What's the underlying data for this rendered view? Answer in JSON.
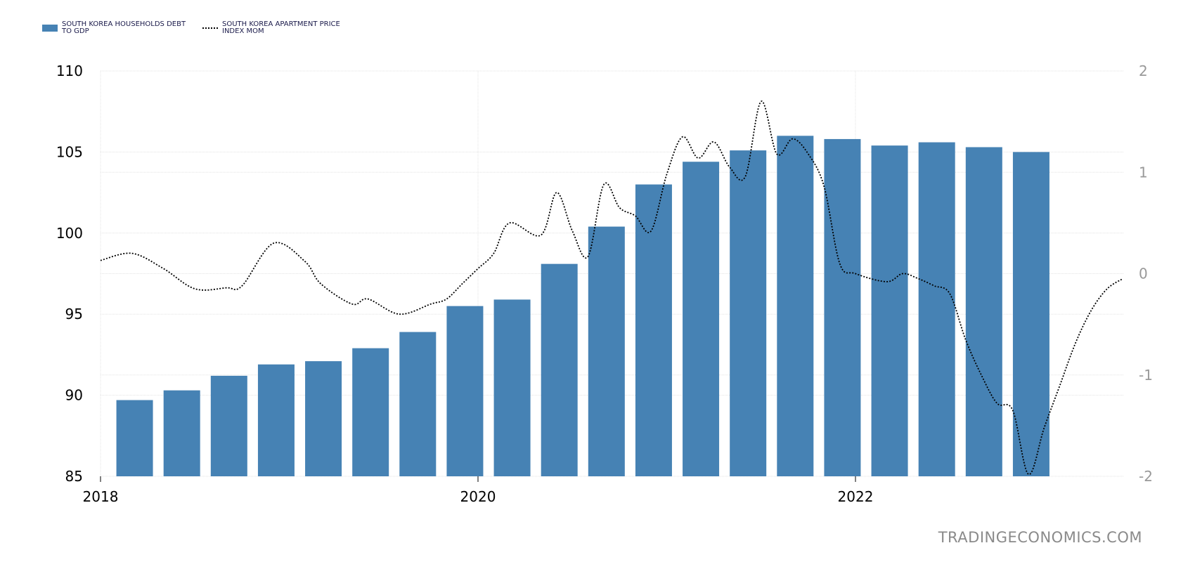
{
  "legend": {
    "bar_label": "SOUTH KOREA HOUSEHOLDS DEBT TO GDP",
    "line_label": "SOUTH KOREA APARTMENT PRICE INDEX MOM"
  },
  "watermark": "TRADINGECONOMICS.COM",
  "colors": {
    "bar": "#4682b4",
    "line": "#000000",
    "grid": "#e3e3e3",
    "left_axis_text": "#000000",
    "right_axis_text": "#999999",
    "watermark": "#8a8a8a"
  },
  "chart_data": {
    "type": "bar",
    "title": "",
    "grid": true,
    "legend_position": "top-left",
    "x_axis": {
      "ticks": [
        "2018",
        "2020",
        "2022"
      ],
      "range": [
        "2018-01",
        "2023-06"
      ]
    },
    "left_axis": {
      "ylim": [
        85,
        110
      ],
      "ticks": [
        "85",
        "90",
        "95",
        "100",
        "105",
        "110"
      ]
    },
    "right_axis": {
      "ylim": [
        -2,
        2
      ],
      "ticks": [
        "-2",
        "-1",
        "0",
        "1",
        "2"
      ]
    },
    "series": [
      {
        "name": "SOUTH KOREA HOUSEHOLDS DEBT TO GDP",
        "type": "bar",
        "axis": "left",
        "x": [
          "2018-Q1",
          "2018-Q2",
          "2018-Q3",
          "2018-Q4",
          "2019-Q1",
          "2019-Q2",
          "2019-Q3",
          "2019-Q4",
          "2020-Q1",
          "2020-Q2",
          "2020-Q3",
          "2020-Q4",
          "2021-Q1",
          "2021-Q2",
          "2021-Q3",
          "2021-Q4",
          "2022-Q1",
          "2022-Q2",
          "2022-Q3",
          "2022-Q4"
        ],
        "values": [
          89.7,
          90.3,
          91.2,
          91.9,
          92.1,
          92.9,
          93.9,
          95.5,
          95.9,
          98.1,
          100.4,
          103.0,
          104.4,
          105.1,
          106.0,
          105.8,
          105.4,
          105.6,
          105.3,
          105.0
        ]
      },
      {
        "name": "SOUTH KOREA APARTMENT PRICE INDEX MOM",
        "type": "line",
        "axis": "right",
        "style": "dotted",
        "x": [
          "2018-01",
          "2018-03",
          "2018-05",
          "2018-07",
          "2018-09",
          "2018-10",
          "2018-12",
          "2019-02",
          "2019-03",
          "2019-05",
          "2019-06",
          "2019-08",
          "2019-10",
          "2019-11",
          "2019-12",
          "2020-01",
          "2020-02",
          "2020-03",
          "2020-05",
          "2020-06",
          "2020-07",
          "2020-08",
          "2020-09",
          "2020-10",
          "2020-11",
          "2020-12",
          "2021-01",
          "2021-02",
          "2021-03",
          "2021-04",
          "2021-05",
          "2021-06",
          "2021-07",
          "2021-08",
          "2021-09",
          "2021-10",
          "2021-11",
          "2021-12",
          "2022-01",
          "2022-03",
          "2022-04",
          "2022-05",
          "2022-06",
          "2022-07",
          "2022-08",
          "2022-09",
          "2022-10",
          "2022-11",
          "2022-12",
          "2023-01",
          "2023-02",
          "2023-03",
          "2023-04",
          "2023-05",
          "2023-06"
        ],
        "values": [
          0.13,
          0.2,
          0.05,
          -0.15,
          -0.14,
          -0.12,
          0.3,
          0.12,
          -0.1,
          -0.3,
          -0.25,
          -0.4,
          -0.3,
          -0.25,
          -0.1,
          0.05,
          0.2,
          0.5,
          0.38,
          0.8,
          0.42,
          0.17,
          0.88,
          0.65,
          0.57,
          0.42,
          0.98,
          1.35,
          1.14,
          1.3,
          1.05,
          0.96,
          1.7,
          1.18,
          1.33,
          1.18,
          0.86,
          0.1,
          0.0,
          -0.08,
          0.0,
          -0.05,
          -0.12,
          -0.2,
          -0.65,
          -1.0,
          -1.28,
          -1.35,
          -1.98,
          -1.52,
          -1.1,
          -0.68,
          -0.36,
          -0.15,
          -0.05
        ]
      }
    ]
  }
}
